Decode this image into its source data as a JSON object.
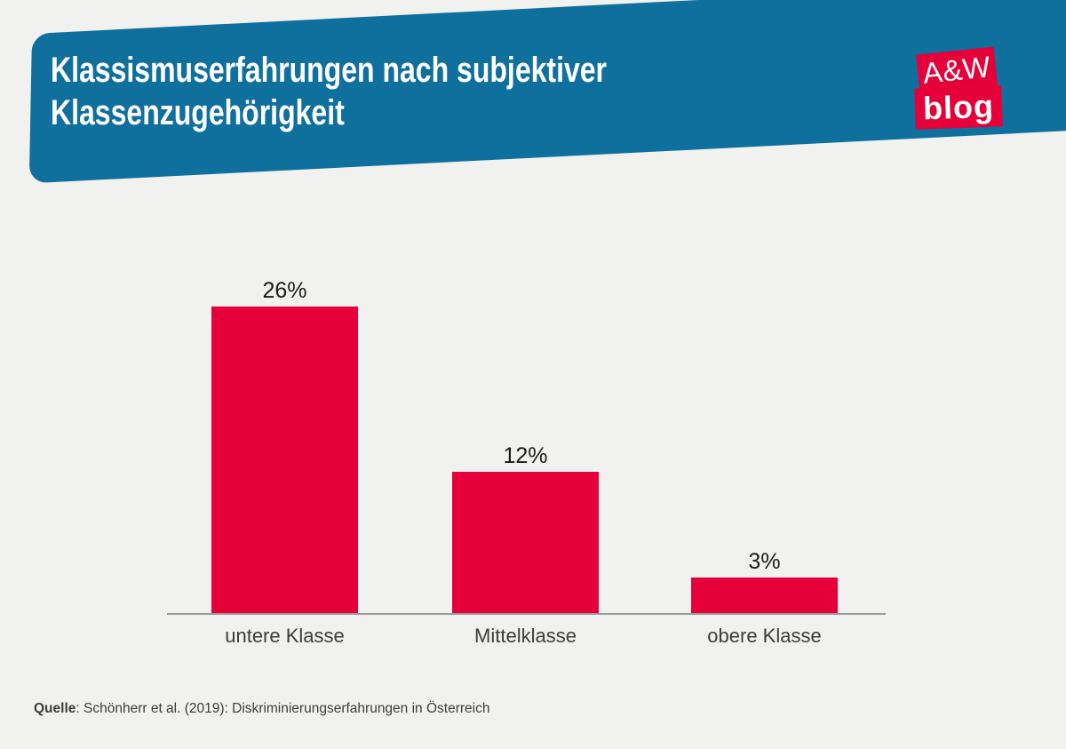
{
  "header": {
    "title": "Klassismuserfahrungen nach subjektiver Klassenzugehörigkeit",
    "banner_color": "#0f6f9d",
    "title_color": "#ffffff"
  },
  "logo": {
    "line1": "A&W",
    "line2": "blog",
    "box_color": "#e50039",
    "text_color": "#ffffff"
  },
  "chart_data": {
    "type": "bar",
    "title": "Klassismuserfahrungen nach subjektiver Klassenzugehörigkeit",
    "categories": [
      "untere Klasse",
      "Mittelklasse",
      "obere Klasse"
    ],
    "values": [
      26,
      12,
      3
    ],
    "labels": [
      "26%",
      "12%",
      "3%"
    ],
    "unit": "%",
    "bar_color": "#e50039",
    "axis_color": "#9b9b9b",
    "ylim": [
      0,
      30
    ],
    "grid": false,
    "legend": "none",
    "data_labels_position": "above bars",
    "xlabel": "",
    "ylabel": ""
  },
  "source": {
    "prefix": "Quelle",
    "text": ": Schönherr et al. (2019): Diskriminierungserfahrungen in Österreich"
  }
}
